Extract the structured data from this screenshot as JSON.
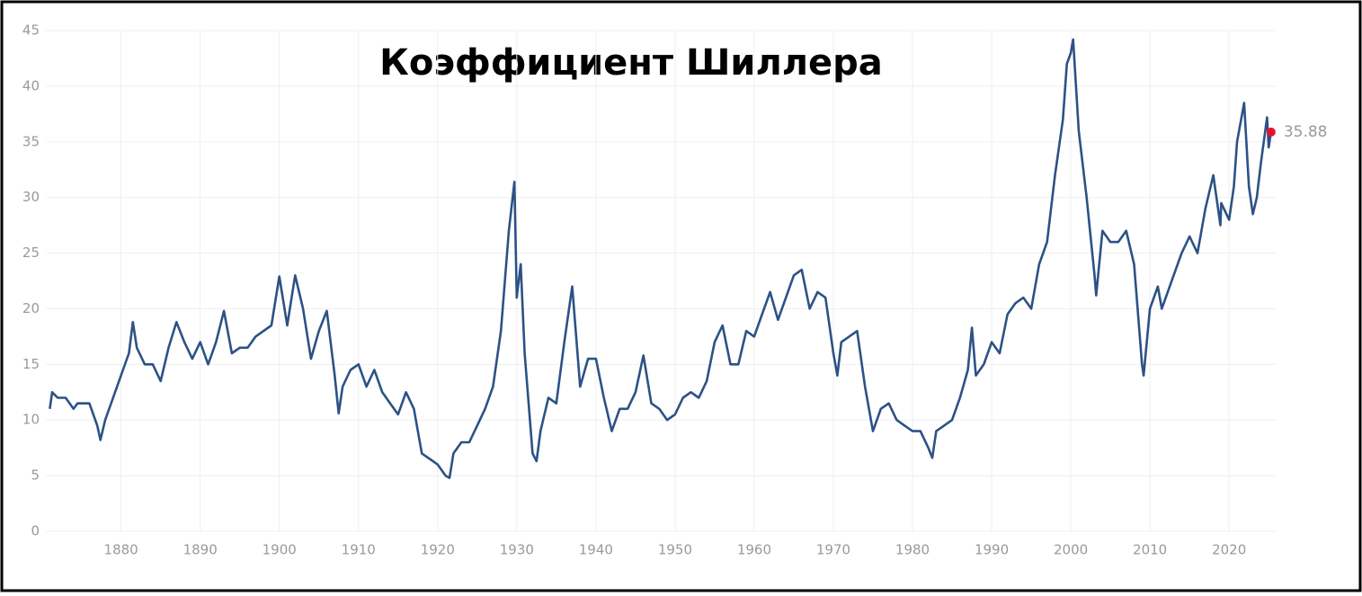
{
  "chart_data": {
    "type": "line",
    "title": "Коэффициент Шиллера",
    "x": [
      1871,
      1871.3,
      1872,
      1873,
      1874,
      1874.5,
      1875,
      1876,
      1877,
      1877.4,
      1878,
      1879,
      1880,
      1881,
      1881.5,
      1882,
      1883,
      1884,
      1885,
      1886,
      1887,
      1888,
      1889,
      1890,
      1891,
      1892,
      1893,
      1894,
      1895,
      1896,
      1897,
      1898,
      1899,
      1900,
      1901,
      1902,
      1903,
      1904,
      1905,
      1906,
      1907,
      1907.5,
      1908,
      1909,
      1910,
      1911,
      1912,
      1913,
      1914,
      1915,
      1916,
      1917,
      1918,
      1919,
      1920,
      1921,
      1921.5,
      1922,
      1923,
      1924,
      1925,
      1926,
      1927,
      1928,
      1929,
      1929.7,
      1930,
      1930.5,
      1931,
      1932,
      1932.5,
      1933,
      1934,
      1935,
      1936,
      1937,
      1938,
      1939,
      1940,
      1941,
      1942,
      1943,
      1944,
      1945,
      1946,
      1947,
      1948,
      1949,
      1950,
      1951,
      1952,
      1953,
      1954,
      1955,
      1956,
      1957,
      1958,
      1959,
      1960,
      1961,
      1962,
      1963,
      1964,
      1965,
      1966,
      1967,
      1968,
      1969,
      1970,
      1970.5,
      1971,
      1972,
      1973,
      1974,
      1975,
      1976,
      1977,
      1978,
      1979,
      1980,
      1981,
      1982,
      1982.5,
      1983,
      1984,
      1985,
      1986,
      1987,
      1987.5,
      1988,
      1989,
      1990,
      1991,
      1992,
      1993,
      1994,
      1995,
      1996,
      1997,
      1998,
      1999,
      1999.5,
      2000,
      2000.3,
      2001,
      2002,
      2003,
      2003.2,
      2004,
      2005,
      2006,
      2007,
      2008,
      2009,
      2009.2,
      2010,
      2011,
      2011.5,
      2012,
      2013,
      2014,
      2015,
      2016,
      2017,
      2018,
      2018.9,
      2019,
      2020,
      2020.6,
      2021,
      2021.9,
      2022.5,
      2023,
      2023.5,
      2024,
      2024.8,
      2025,
      2025.3
    ],
    "values": [
      11,
      12.5,
      12,
      12,
      11,
      11.5,
      11.5,
      11.5,
      9.5,
      8.2,
      10,
      12,
      14,
      16,
      18.8,
      16.5,
      15,
      15,
      13.5,
      16.5,
      18.8,
      17,
      15.5,
      17,
      15,
      17,
      19.8,
      16,
      16.5,
      16.5,
      17.5,
      18,
      18.5,
      22.9,
      18.5,
      23,
      20,
      15.5,
      18,
      19.8,
      14,
      10.6,
      13,
      14.5,
      15,
      13,
      14.5,
      12.5,
      11.5,
      10.5,
      12.5,
      11,
      7,
      6.5,
      6,
      5,
      4.8,
      7,
      8,
      8,
      9.5,
      11,
      13,
      18,
      27,
      31.4,
      21,
      24,
      16,
      7,
      6.3,
      9,
      12,
      11.5,
      17,
      22,
      13,
      15.5,
      15.5,
      12,
      9,
      11,
      11,
      12.5,
      15.8,
      11.5,
      11,
      10,
      10.5,
      12,
      12.5,
      12,
      13.5,
      17,
      18.5,
      15,
      15,
      18,
      17.5,
      19.5,
      21.5,
      19,
      21,
      23,
      23.5,
      20,
      21.5,
      21,
      16,
      14,
      17,
      17.5,
      18,
      13,
      9,
      11,
      11.5,
      10,
      9.5,
      9,
      9,
      7.5,
      6.6,
      9,
      9.5,
      10,
      12,
      14.5,
      18.3,
      14,
      15,
      17,
      16,
      19.5,
      20.5,
      21,
      20,
      24,
      26,
      32,
      37,
      42,
      43,
      44.2,
      36,
      30,
      23,
      21.2,
      27,
      26,
      26,
      27,
      24,
      15,
      14,
      20,
      22,
      20,
      21,
      23,
      25,
      26.5,
      25,
      29,
      32,
      27.5,
      29.5,
      28,
      31,
      35,
      38.5,
      31,
      28.5,
      30,
      33,
      37.2,
      34.5,
      35.88
    ],
    "color": "#2c5286",
    "highlight_color": "#e8112d",
    "xlim": [
      1870.5,
      2026
    ],
    "ylim": [
      0,
      45
    ],
    "xticks": [
      1880,
      1890,
      1900,
      1910,
      1920,
      1930,
      1940,
      1950,
      1960,
      1970,
      1980,
      1990,
      2000,
      2010,
      2020
    ],
    "yticks": [
      0,
      5,
      10,
      15,
      20,
      25,
      30,
      35,
      40,
      45
    ],
    "grid": true
  }
}
